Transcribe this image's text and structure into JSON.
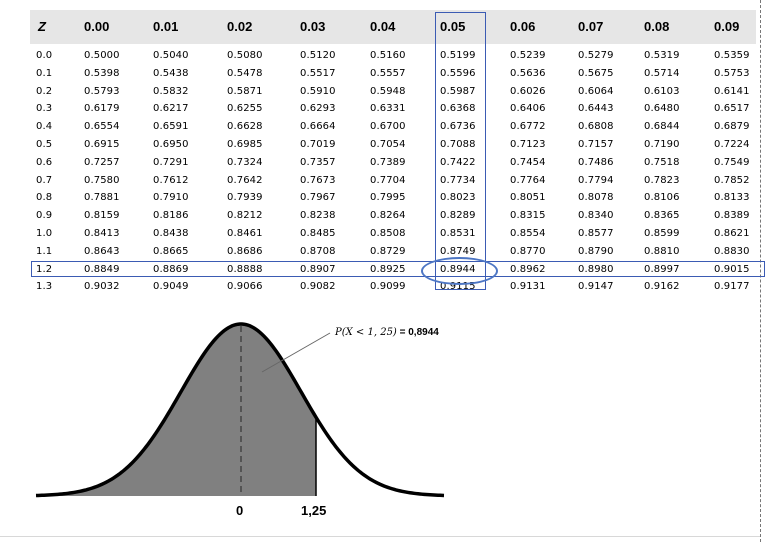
{
  "table": {
    "headers": [
      "Z",
      "0.00",
      "0.01",
      "0.02",
      "0.03",
      "0.04",
      "0.05",
      "0.06",
      "0.07",
      "0.08",
      "0.09"
    ],
    "rows": [
      [
        "0.0",
        "0.5000",
        "0.5040",
        "0.5080",
        "0.5120",
        "0.5160",
        "0.5199",
        "0.5239",
        "0.5279",
        "0.5319",
        "0.5359"
      ],
      [
        "0.1",
        "0.5398",
        "0.5438",
        "0.5478",
        "0.5517",
        "0.5557",
        "0.5596",
        "0.5636",
        "0.5675",
        "0.5714",
        "0.5753"
      ],
      [
        "0.2",
        "0.5793",
        "0.5832",
        "0.5871",
        "0.5910",
        "0.5948",
        "0.5987",
        "0.6026",
        "0.6064",
        "0.6103",
        "0.6141"
      ],
      [
        "0.3",
        "0.6179",
        "0.6217",
        "0.6255",
        "0.6293",
        "0.6331",
        "0.6368",
        "0.6406",
        "0.6443",
        "0.6480",
        "0.6517"
      ],
      [
        "0.4",
        "0.6554",
        "0.6591",
        "0.6628",
        "0.6664",
        "0.6700",
        "0.6736",
        "0.6772",
        "0.6808",
        "0.6844",
        "0.6879"
      ],
      [
        "0.5",
        "0.6915",
        "0.6950",
        "0.6985",
        "0.7019",
        "0.7054",
        "0.7088",
        "0.7123",
        "0.7157",
        "0.7190",
        "0.7224"
      ],
      [
        "0.6",
        "0.7257",
        "0.7291",
        "0.7324",
        "0.7357",
        "0.7389",
        "0.7422",
        "0.7454",
        "0.7486",
        "0.7518",
        "0.7549"
      ],
      [
        "0.7",
        "0.7580",
        "0.7612",
        "0.7642",
        "0.7673",
        "0.7704",
        "0.7734",
        "0.7764",
        "0.7794",
        "0.7823",
        "0.7852"
      ],
      [
        "0.8",
        "0.7881",
        "0.7910",
        "0.7939",
        "0.7967",
        "0.7995",
        "0.8023",
        "0.8051",
        "0.8078",
        "0.8106",
        "0.8133"
      ],
      [
        "0.9",
        "0.8159",
        "0.8186",
        "0.8212",
        "0.8238",
        "0.8264",
        "0.8289",
        "0.8315",
        "0.8340",
        "0.8365",
        "0.8389"
      ],
      [
        "1.0",
        "0.8413",
        "0.8438",
        "0.8461",
        "0.8485",
        "0.8508",
        "0.8531",
        "0.8554",
        "0.8577",
        "0.8599",
        "0.8621"
      ],
      [
        "1.1",
        "0.8643",
        "0.8665",
        "0.8686",
        "0.8708",
        "0.8729",
        "0.8749",
        "0.8770",
        "0.8790",
        "0.8810",
        "0.8830"
      ],
      [
        "1.2",
        "0.8849",
        "0.8869",
        "0.8888",
        "0.8907",
        "0.8925",
        "0.8944",
        "0.8962",
        "0.8980",
        "0.8997",
        "0.9015"
      ],
      [
        "1.3",
        "0.9032",
        "0.9049",
        "0.9066",
        "0.9082",
        "0.9099",
        "0.9115",
        "0.9131",
        "0.9147",
        "0.9162",
        "0.9177"
      ]
    ],
    "highlight_column": "0.05",
    "highlight_row": "1.2",
    "circled_value": "0.8944"
  },
  "diagram": {
    "formula_lhs": "P(X < 1, 25)",
    "formula_rhs": " = 0,8944",
    "mean_label": "0",
    "z_label": "1,25",
    "shaded_color": "#808080",
    "highlight_color": "#3b5bb3"
  }
}
